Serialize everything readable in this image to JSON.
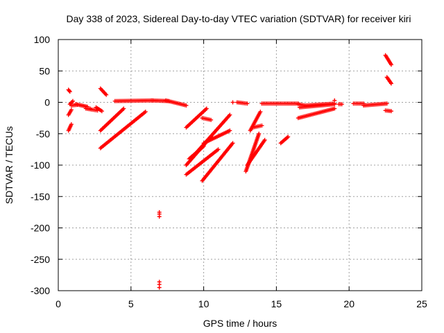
{
  "chart_data": {
    "type": "scatter",
    "title": "Day 338 of 2023, Sidereal Day-to-day VTEC variation (SDTVAR) for receiver kiri",
    "xlabel": "GPS time / hours",
    "ylabel": "SDTVAR / TECUs",
    "xlim": [
      0,
      25
    ],
    "ylim": [
      -300,
      100
    ],
    "xticks": [
      0,
      5,
      10,
      15,
      20,
      25
    ],
    "yticks": [
      100,
      50,
      0,
      -50,
      -100,
      -150,
      -200,
      -250,
      -300
    ],
    "grid": true,
    "legend": "none",
    "marker": "plus",
    "color": "#ff0000",
    "segments": [
      {
        "x": [
          0.7,
          0.8
        ],
        "y": [
          20,
          17
        ]
      },
      {
        "x": [
          0.7,
          0.9
        ],
        "y": [
          -45,
          -35
        ]
      },
      {
        "x": [
          0.7,
          0.9
        ],
        "y": [
          -20,
          -12
        ]
      },
      {
        "x": [
          0.8,
          1.0
        ],
        "y": [
          -3,
          2
        ]
      },
      {
        "x": [
          0.9,
          1.3
        ],
        "y": [
          -5,
          -4
        ]
      },
      {
        "x": [
          1.2,
          2.0
        ],
        "y": [
          -3,
          -7
        ]
      },
      {
        "x": [
          1.9,
          2.7
        ],
        "y": [
          -10,
          -13
        ]
      },
      {
        "x": [
          2.6,
          3.0
        ],
        "y": [
          -8,
          -14
        ]
      },
      {
        "x": [
          2.9,
          3.3
        ],
        "y": [
          22,
          12
        ]
      },
      {
        "x": [
          2.9,
          4.5
        ],
        "y": [
          -45,
          -10
        ]
      },
      {
        "x": [
          2.9,
          6.0
        ],
        "y": [
          -73,
          -15
        ]
      },
      {
        "x": [
          3.9,
          6.5
        ],
        "y": [
          2,
          3
        ]
      },
      {
        "x": [
          6.4,
          7.6
        ],
        "y": [
          3,
          2
        ]
      },
      {
        "x": [
          7.4,
          8.8
        ],
        "y": [
          3,
          -5
        ]
      },
      {
        "x": [
          8.8,
          10.2
        ],
        "y": [
          -40,
          -10
        ]
      },
      {
        "x": [
          8.8,
          11.0
        ],
        "y": [
          -115,
          -75
        ]
      },
      {
        "x": [
          8.8,
          10.5
        ],
        "y": [
          -100,
          -55
        ]
      },
      {
        "x": [
          9.0,
          10.0
        ],
        "y": [
          -90,
          -70
        ]
      },
      {
        "x": [
          9.5,
          11.8
        ],
        "y": [
          -80,
          -20
        ]
      },
      {
        "x": [
          9.9,
          12.0
        ],
        "y": [
          -125,
          -65
        ]
      },
      {
        "x": [
          10.0,
          11.8
        ],
        "y": [
          -65,
          -45
        ]
      },
      {
        "x": [
          9.9,
          10.5
        ],
        "y": [
          -25,
          -28
        ]
      },
      {
        "x": [
          12.3,
          13.0
        ],
        "y": [
          0,
          -2
        ]
      },
      {
        "x": [
          12.9,
          13.8
        ],
        "y": [
          -110,
          -50
        ]
      },
      {
        "x": [
          13.0,
          14.2
        ],
        "y": [
          -100,
          -60
        ]
      },
      {
        "x": [
          13.2,
          13.9
        ],
        "y": [
          -45,
          -15
        ]
      },
      {
        "x": [
          13.4,
          14.0
        ],
        "y": [
          -40,
          -37
        ]
      },
      {
        "x": [
          14.0,
          16.5
        ],
        "y": [
          -2,
          -2
        ]
      },
      {
        "x": [
          15.3,
          15.8
        ],
        "y": [
          -65,
          -55
        ]
      },
      {
        "x": [
          16.5,
          17.0
        ],
        "y": [
          -3,
          -5
        ]
      },
      {
        "x": [
          16.5,
          19.0
        ],
        "y": [
          -25,
          -10
        ]
      },
      {
        "x": [
          16.6,
          19.0
        ],
        "y": [
          -8,
          -3
        ]
      },
      {
        "x": [
          17.0,
          19.0
        ],
        "y": [
          -5,
          -2
        ]
      },
      {
        "x": [
          19.3,
          19.5
        ],
        "y": [
          -3,
          -3
        ]
      },
      {
        "x": [
          20.3,
          21.0
        ],
        "y": [
          -2,
          -2
        ]
      },
      {
        "x": [
          21.0,
          22.6
        ],
        "y": [
          -5,
          -2
        ]
      },
      {
        "x": [
          22.5,
          22.9
        ],
        "y": [
          75,
          60
        ]
      },
      {
        "x": [
          22.5,
          22.9
        ],
        "y": [
          -13,
          -14
        ]
      },
      {
        "x": [
          22.6,
          22.9
        ],
        "y": [
          40,
          30
        ]
      }
    ],
    "points": [
      {
        "x": 6.95,
        "y": -175
      },
      {
        "x": 6.95,
        "y": -178
      },
      {
        "x": 6.95,
        "y": -182
      },
      {
        "x": 6.95,
        "y": -286
      },
      {
        "x": 6.95,
        "y": -290
      },
      {
        "x": 6.95,
        "y": -295
      },
      {
        "x": 12.0,
        "y": 0
      },
      {
        "x": 2.2,
        "y": -10
      },
      {
        "x": 19.0,
        "y": 3
      }
    ]
  }
}
